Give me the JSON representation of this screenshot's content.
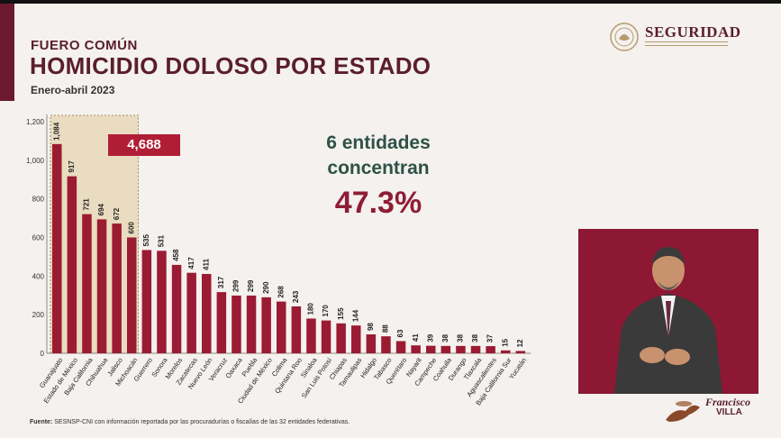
{
  "header": {
    "eyebrow": "FUERO COMÚN",
    "title": "HOMICIDIO DOLOSO POR ESTADO",
    "subtitle": "Enero-abril 2023"
  },
  "logo": {
    "text": "SEGURIDAD",
    "icon": "mexico-seal-icon"
  },
  "callout": {
    "line1": "6 entidades",
    "line2": "concentran",
    "percent": "47.3%",
    "total": "4,688"
  },
  "source": {
    "label": "Fuente:",
    "text": "SESNSP-CNI con información reportada por las procuradurías o fiscalías de las 32 entidades federativas."
  },
  "video": {
    "brand_line1": "Francisco",
    "brand_line2": "VILLA"
  },
  "colors": {
    "bar": "#9b1b33",
    "highlight": "#e9dcc0",
    "title": "#5a1e2c",
    "headline": "#2f5148",
    "percent": "#8e1d36"
  },
  "chart_data": {
    "type": "bar",
    "title": "HOMICIDIO DOLOSO POR ESTADO",
    "xlabel": "",
    "ylabel": "",
    "ylim": [
      0,
      1200
    ],
    "yticks": [
      0,
      200,
      400,
      600,
      800,
      1000,
      1200
    ],
    "ytick_labels": [
      "0",
      "200",
      "400",
      "600",
      "800",
      "1,000",
      "1,200"
    ],
    "grid": false,
    "highlighted_range": [
      0,
      5
    ],
    "categories": [
      "Guanajuato",
      "Estado de México",
      "Baja California",
      "Chihuahua",
      "Jalisco",
      "Michoacán",
      "Guerrero",
      "Sonora",
      "Morelos",
      "Zacatecas",
      "Nuevo León",
      "Veracruz",
      "Oaxaca",
      "Puebla",
      "Ciudad de México",
      "Colima",
      "Quintana Roo",
      "Sinaloa",
      "San Luis Potosí",
      "Chiapas",
      "Tamaulipas",
      "Hidalgo",
      "Tabasco",
      "Querétaro",
      "Nayarit",
      "Campeche",
      "Coahuila",
      "Durango",
      "Tlaxcala",
      "Aguascalientes",
      "Baja California Sur",
      "Yucatán"
    ],
    "values": [
      1084,
      917,
      721,
      694,
      672,
      600,
      535,
      531,
      458,
      417,
      411,
      317,
      299,
      299,
      290,
      268,
      243,
      180,
      170,
      155,
      144,
      98,
      88,
      63,
      41,
      39,
      38,
      38,
      38,
      37,
      15,
      12
    ],
    "value_labels": [
      "1,084",
      "917",
      "721",
      "694",
      "672",
      "600",
      "535",
      "531",
      "458",
      "417",
      "411",
      "317",
      "299",
      "299",
      "290",
      "268",
      "243",
      "180",
      "170",
      "155",
      "144",
      "98",
      "88",
      "63",
      "41",
      "39",
      "38",
      "38",
      "38",
      "37",
      "15",
      "12"
    ]
  }
}
